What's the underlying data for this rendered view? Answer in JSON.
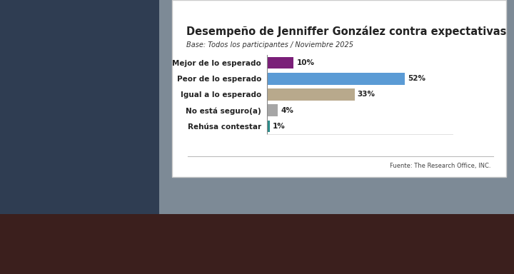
{
  "chart_data": {
    "type": "bar",
    "orientation": "horizontal",
    "title": "Desempeño de Jenniffer González contra expectativas",
    "subtitle": "Base: Todos los participantes / Noviembre 2025",
    "categories": [
      "Mejor de lo esperado",
      "Peor de lo esperado",
      "Igual a lo esperado",
      "No está seguro(a)",
      "Rehúsa contestar"
    ],
    "values": [
      10,
      52,
      33,
      4,
      1
    ],
    "value_labels": [
      "10%",
      "52%",
      "33%",
      "4%",
      "1%"
    ],
    "colors": [
      "#7a1f78",
      "#5b9bd5",
      "#b8a98c",
      "#a6a6a6",
      "#2b8c8a"
    ],
    "xlim": [
      0,
      70
    ],
    "data_labels": true,
    "tick_labels": "y",
    "grid": false,
    "annotations": [
      "Fuente: The Research Office, INC."
    ]
  }
}
